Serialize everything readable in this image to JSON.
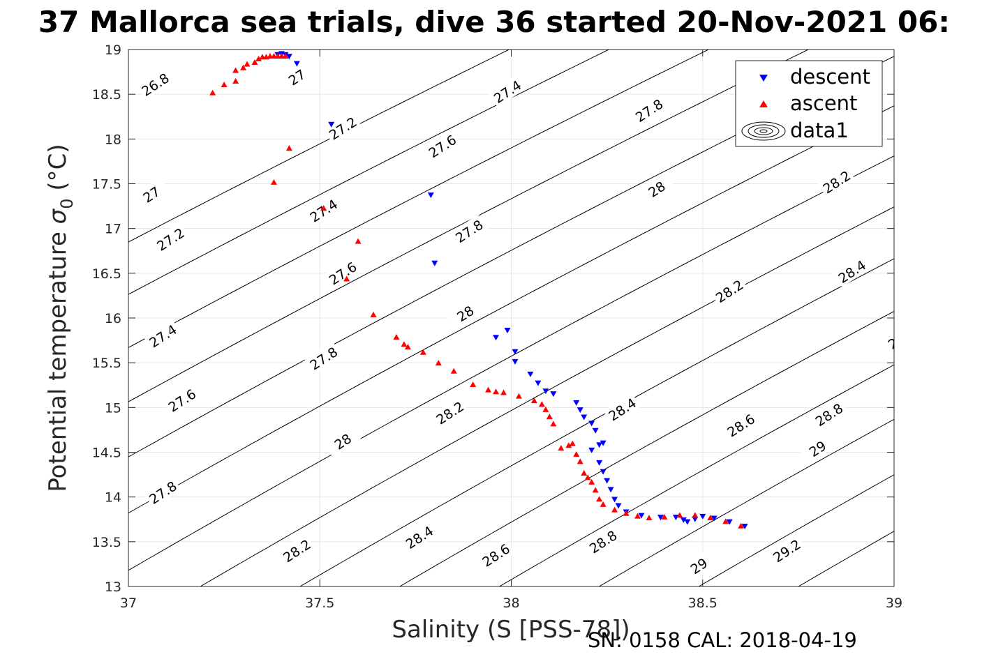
{
  "chart_data": {
    "type": "scatter",
    "title": "37 Mallorca sea trials, dive 36 started 20-Nov-2021 06:",
    "xlabel": "Salinity (S [PSS-78])",
    "ylabel": "Potential temperature",
    "ylabel_symbol": "σ",
    "ylabel_sub": "0",
    "ylabel_unit": "(°C)",
    "xlim": [
      37,
      39
    ],
    "ylim": [
      13,
      19
    ],
    "x_ticks": [
      "37",
      "37.5",
      "38",
      "38.5",
      "39"
    ],
    "y_ticks": [
      "13",
      "13.5",
      "14",
      "14.5",
      "15",
      "15.5",
      "16",
      "16.5",
      "17",
      "17.5",
      "18",
      "18.5",
      "19"
    ],
    "grid": true,
    "legend_position": "top-right",
    "legend": [
      "descent",
      "ascent",
      "data1"
    ],
    "series": [
      {
        "name": "descent",
        "color": "#0000ff",
        "marker": "triangle-down",
        "points": [
          [
            37.39,
            18.94
          ],
          [
            37.4,
            18.95
          ],
          [
            37.41,
            18.94
          ],
          [
            37.42,
            18.92
          ],
          [
            37.44,
            18.84
          ],
          [
            37.53,
            18.16
          ],
          [
            37.79,
            17.37
          ],
          [
            37.8,
            16.61
          ],
          [
            37.99,
            15.86
          ],
          [
            37.96,
            15.78
          ],
          [
            38.01,
            15.62
          ],
          [
            38.01,
            15.51
          ],
          [
            38.05,
            15.37
          ],
          [
            38.07,
            15.27
          ],
          [
            38.09,
            15.18
          ],
          [
            38.11,
            15.15
          ],
          [
            38.17,
            15.05
          ],
          [
            38.18,
            14.97
          ],
          [
            38.19,
            14.89
          ],
          [
            38.21,
            14.82
          ],
          [
            38.22,
            14.74
          ],
          [
            38.24,
            14.6
          ],
          [
            38.23,
            14.58
          ],
          [
            38.21,
            14.52
          ],
          [
            38.23,
            14.38
          ],
          [
            38.24,
            14.28
          ],
          [
            38.25,
            14.18
          ],
          [
            38.26,
            14.08
          ],
          [
            38.27,
            13.97
          ],
          [
            38.28,
            13.9
          ],
          [
            38.3,
            13.83
          ],
          [
            38.34,
            13.79
          ],
          [
            38.39,
            13.77
          ],
          [
            38.43,
            13.77
          ],
          [
            38.45,
            13.74
          ],
          [
            38.46,
            13.72
          ],
          [
            38.48,
            13.75
          ],
          [
            38.5,
            13.78
          ],
          [
            38.53,
            13.76
          ],
          [
            38.57,
            13.72
          ],
          [
            38.61,
            13.67
          ]
        ]
      },
      {
        "name": "ascent",
        "color": "#ff0000",
        "marker": "triangle-up",
        "points": [
          [
            37.22,
            18.52
          ],
          [
            37.25,
            18.61
          ],
          [
            37.28,
            18.65
          ],
          [
            37.28,
            18.77
          ],
          [
            37.3,
            18.8
          ],
          [
            37.31,
            18.84
          ],
          [
            37.33,
            18.86
          ],
          [
            37.34,
            18.9
          ],
          [
            37.35,
            18.92
          ],
          [
            37.36,
            18.92
          ],
          [
            37.37,
            18.93
          ],
          [
            37.38,
            18.93
          ],
          [
            37.39,
            18.93
          ],
          [
            37.4,
            18.93
          ],
          [
            37.41,
            18.93
          ],
          [
            37.38,
            17.52
          ],
          [
            37.42,
            17.9
          ],
          [
            37.51,
            17.23
          ],
          [
            37.6,
            16.86
          ],
          [
            37.57,
            16.44
          ],
          [
            37.64,
            16.04
          ],
          [
            37.7,
            15.79
          ],
          [
            37.72,
            15.71
          ],
          [
            37.73,
            15.68
          ],
          [
            37.77,
            15.62
          ],
          [
            37.81,
            15.5
          ],
          [
            37.85,
            15.41
          ],
          [
            37.9,
            15.26
          ],
          [
            37.94,
            15.2
          ],
          [
            37.96,
            15.18
          ],
          [
            37.98,
            15.17
          ],
          [
            38.02,
            15.13
          ],
          [
            38.06,
            15.08
          ],
          [
            38.08,
            15.04
          ],
          [
            38.09,
            14.98
          ],
          [
            38.1,
            14.9
          ],
          [
            38.11,
            14.82
          ],
          [
            38.13,
            14.55
          ],
          [
            38.15,
            14.58
          ],
          [
            38.16,
            14.6
          ],
          [
            38.17,
            14.48
          ],
          [
            38.18,
            14.4
          ],
          [
            38.19,
            14.27
          ],
          [
            38.2,
            14.22
          ],
          [
            38.21,
            14.17
          ],
          [
            38.22,
            14.08
          ],
          [
            38.23,
            13.98
          ],
          [
            38.24,
            13.92
          ],
          [
            38.27,
            13.86
          ],
          [
            38.3,
            13.82
          ],
          [
            38.33,
            13.79
          ],
          [
            38.36,
            13.77
          ],
          [
            38.4,
            13.78
          ],
          [
            38.44,
            13.8
          ],
          [
            38.48,
            13.8
          ],
          [
            38.52,
            13.77
          ],
          [
            38.56,
            13.73
          ],
          [
            38.6,
            13.68
          ]
        ]
      }
    ],
    "contour_levels": [
      {
        "level": 26.8,
        "label": "26.8",
        "label_at": [
          37.07,
          18.61
        ]
      },
      {
        "level": 27.0,
        "label": "27",
        "label_at": [
          37.44,
          18.69
        ]
      },
      {
        "level": 27.0,
        "label": "27",
        "label_at": [
          37.06,
          17.38
        ]
      },
      {
        "level": 27.2,
        "label": "27.2",
        "label_at": [
          37.56,
          18.12
        ]
      },
      {
        "level": 27.2,
        "label": "27.2",
        "label_at": [
          37.11,
          16.88
        ]
      },
      {
        "level": 27.4,
        "label": "27.4",
        "label_at": [
          37.99,
          18.53
        ]
      },
      {
        "level": 27.4,
        "label": "27.4",
        "label_at": [
          37.51,
          17.2
        ]
      },
      {
        "level": 27.4,
        "label": "27.4",
        "label_at": [
          37.09,
          15.8
        ]
      },
      {
        "level": 27.6,
        "label": "27.6",
        "label_at": [
          37.82,
          17.92
        ]
      },
      {
        "level": 27.6,
        "label": "27.6",
        "label_at": [
          37.56,
          16.5
        ]
      },
      {
        "level": 27.6,
        "label": "27.6",
        "label_at": [
          37.14,
          15.08
        ]
      },
      {
        "level": 27.8,
        "label": "27.8",
        "label_at": [
          38.36,
          18.32
        ]
      },
      {
        "level": 27.8,
        "label": "27.8",
        "label_at": [
          37.89,
          16.97
        ]
      },
      {
        "level": 27.8,
        "label": "27.8",
        "label_at": [
          37.51,
          15.55
        ]
      },
      {
        "level": 27.8,
        "label": "27.8",
        "label_at": [
          37.09,
          14.05
        ]
      },
      {
        "level": 28.0,
        "label": "28",
        "label_at": [
          38.38,
          17.44
        ]
      },
      {
        "level": 28.0,
        "label": "28",
        "label_at": [
          37.88,
          16.05
        ]
      },
      {
        "level": 28.0,
        "label": "28",
        "label_at": [
          37.56,
          14.62
        ]
      },
      {
        "level": 28.2,
        "label": "28.2",
        "label_at": [
          38.85,
          17.52
        ]
      },
      {
        "level": 28.2,
        "label": "28.2",
        "label_at": [
          38.57,
          16.3
        ]
      },
      {
        "level": 28.2,
        "label": "28.2",
        "label_at": [
          37.84,
          14.94
        ]
      },
      {
        "level": 28.2,
        "label": "28.2",
        "label_at": [
          37.44,
          13.4
        ]
      },
      {
        "level": 28.4,
        "label": "28.4",
        "label_at": [
          38.89,
          16.52
        ]
      },
      {
        "level": 28.4,
        "label": "28.4",
        "label_at": [
          38.29,
          14.98
        ]
      },
      {
        "level": 28.4,
        "label": "28.4",
        "label_at": [
          37.76,
          13.55
        ]
      },
      {
        "level": 28.6,
        "label": "28.6",
        "label_at": [
          39.02,
          15.78
        ]
      },
      {
        "level": 28.6,
        "label": "28.6",
        "label_at": [
          38.6,
          14.8
        ]
      },
      {
        "level": 28.6,
        "label": "28.6",
        "label_at": [
          37.96,
          13.35
        ]
      },
      {
        "level": 28.8,
        "label": "28.8",
        "label_at": [
          38.83,
          14.92
        ]
      },
      {
        "level": 28.8,
        "label": "28.8",
        "label_at": [
          38.24,
          13.5
        ]
      },
      {
        "level": 29.0,
        "label": "29",
        "label_at": [
          38.8,
          14.54
        ]
      },
      {
        "level": 29.0,
        "label": "29",
        "label_at": [
          38.49,
          13.23
        ]
      },
      {
        "level": 29.2,
        "label": "29.2",
        "label_at": [
          38.72,
          13.4
        ]
      }
    ]
  },
  "footer": {
    "serial": "SN: 0158  CAL: 2018-04-19"
  }
}
